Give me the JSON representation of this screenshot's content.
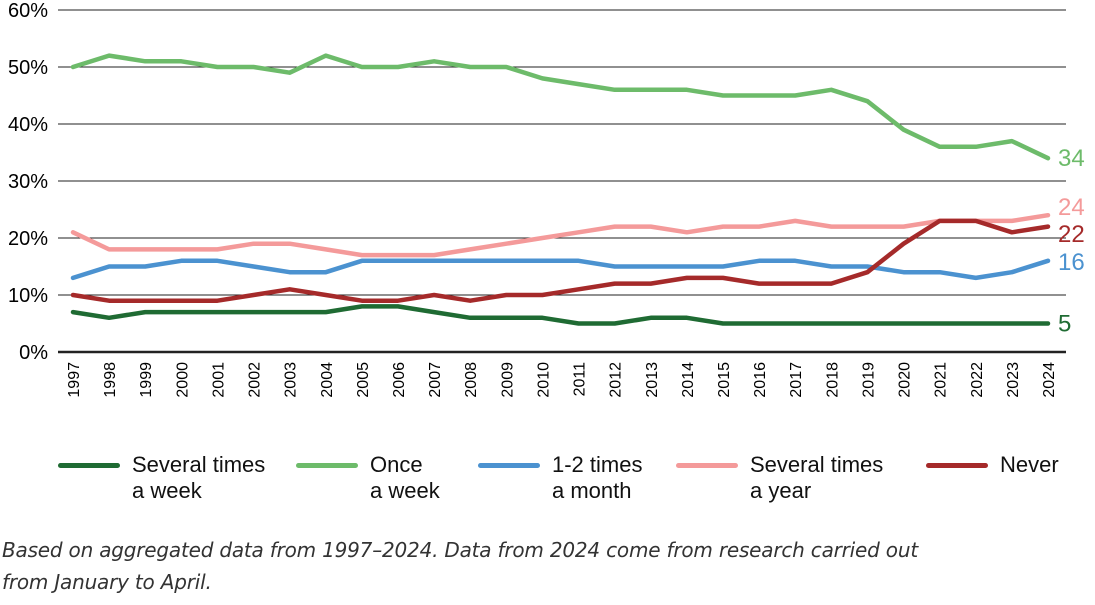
{
  "chart_data": {
    "type": "line",
    "x": [
      "1997",
      "1998",
      "1999",
      "2000",
      "2001",
      "2002",
      "2003",
      "2004",
      "2005",
      "2006",
      "2007",
      "2008",
      "2009",
      "2010",
      "2011",
      "2012",
      "2013",
      "2014",
      "2015",
      "2016",
      "2017",
      "2018",
      "2019",
      "2020",
      "2021",
      "2022",
      "2023",
      "2024"
    ],
    "ylim": [
      0,
      60
    ],
    "yticks": [
      "0%",
      "10%",
      "20%",
      "30%",
      "40%",
      "50%",
      "60%"
    ],
    "ytick_values": [
      0,
      10,
      20,
      30,
      40,
      50,
      60
    ],
    "grid": true,
    "legend_position": "bottom",
    "series": [
      {
        "name_lines": [
          "Several times",
          "a week"
        ],
        "color": "#1f6b33",
        "end_label": "5",
        "values": [
          7,
          6,
          7,
          7,
          7,
          7,
          7,
          7,
          8,
          8,
          7,
          6,
          6,
          6,
          5,
          5,
          6,
          6,
          5,
          5,
          5,
          5,
          5,
          5,
          5,
          5,
          5,
          5
        ]
      },
      {
        "name_lines": [
          "Once",
          "a week"
        ],
        "color": "#6dbb6a",
        "end_label": "34",
        "values": [
          50,
          52,
          51,
          51,
          50,
          50,
          49,
          52,
          50,
          50,
          51,
          50,
          50,
          48,
          47,
          46,
          46,
          46,
          45,
          45,
          45,
          46,
          44,
          39,
          36,
          36,
          37,
          34
        ]
      },
      {
        "name_lines": [
          "1-2 times",
          "a month"
        ],
        "color": "#4b92d0",
        "end_label": "16",
        "values": [
          13,
          15,
          15,
          16,
          16,
          15,
          14,
          14,
          16,
          16,
          16,
          16,
          16,
          16,
          16,
          15,
          15,
          15,
          15,
          16,
          16,
          15,
          15,
          14,
          14,
          13,
          14,
          16
        ]
      },
      {
        "name_lines": [
          "Several times",
          "a year"
        ],
        "color": "#f49a9a",
        "end_label": "24",
        "values": [
          21,
          18,
          18,
          18,
          18,
          19,
          19,
          18,
          17,
          17,
          17,
          18,
          19,
          20,
          21,
          22,
          22,
          21,
          22,
          22,
          23,
          22,
          22,
          22,
          23,
          23,
          23,
          24
        ]
      },
      {
        "name_lines": [
          "Never"
        ],
        "color": "#a52a2a",
        "end_label": "22",
        "values": [
          10,
          9,
          9,
          9,
          9,
          10,
          11,
          10,
          9,
          9,
          10,
          9,
          10,
          10,
          11,
          12,
          12,
          13,
          13,
          12,
          12,
          12,
          14,
          19,
          23,
          23,
          21,
          22
        ]
      }
    ],
    "note_lines": [
      "Based on aggregated data from 1997–2024. Data from 2024 come from research carried out",
      "from January to April."
    ]
  }
}
